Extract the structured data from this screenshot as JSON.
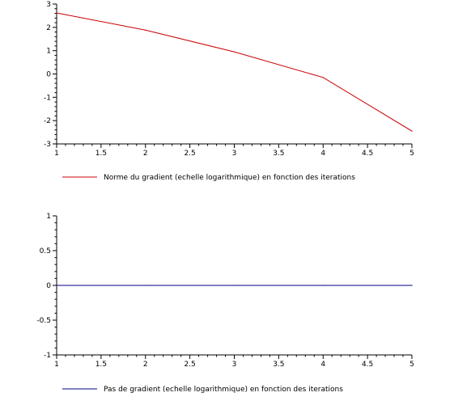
{
  "colors": {
    "series1": "#cc0000",
    "series2": "#000080",
    "axis": "#000000"
  },
  "chart_data": [
    {
      "type": "line",
      "x": [
        1,
        2,
        3,
        4,
        5
      ],
      "xlim": [
        1,
        5
      ],
      "ylim": [
        -3,
        3
      ],
      "x_ticks": [
        "1",
        "1.5",
        "2",
        "2.5",
        "3",
        "3.5",
        "4",
        "4.5",
        "5"
      ],
      "y_ticks": [
        "-3",
        "-2",
        "-1",
        "0",
        "1",
        "2",
        "3"
      ],
      "grid": false,
      "legend_position": "bottom-left",
      "series": [
        {
          "name": "Norme du gradient (echelle logarithmique) en fonction des iterations",
          "values": [
            2.62,
            1.88,
            0.95,
            -0.15,
            -2.45
          ]
        }
      ]
    },
    {
      "type": "line",
      "x": [
        1,
        2,
        3,
        4,
        5
      ],
      "xlim": [
        1,
        5
      ],
      "ylim": [
        -1,
        1
      ],
      "x_ticks": [
        "1",
        "1.5",
        "2",
        "2.5",
        "3",
        "3.5",
        "4",
        "4.5",
        "5"
      ],
      "y_ticks": [
        "-1",
        "-0.5",
        "0",
        "0.5",
        "1"
      ],
      "grid": false,
      "legend_position": "bottom-left",
      "series": [
        {
          "name": "Pas de gradient (echelle logarithmique) en fonction des iterations",
          "values": [
            0,
            0,
            0,
            0,
            0
          ]
        }
      ]
    }
  ]
}
